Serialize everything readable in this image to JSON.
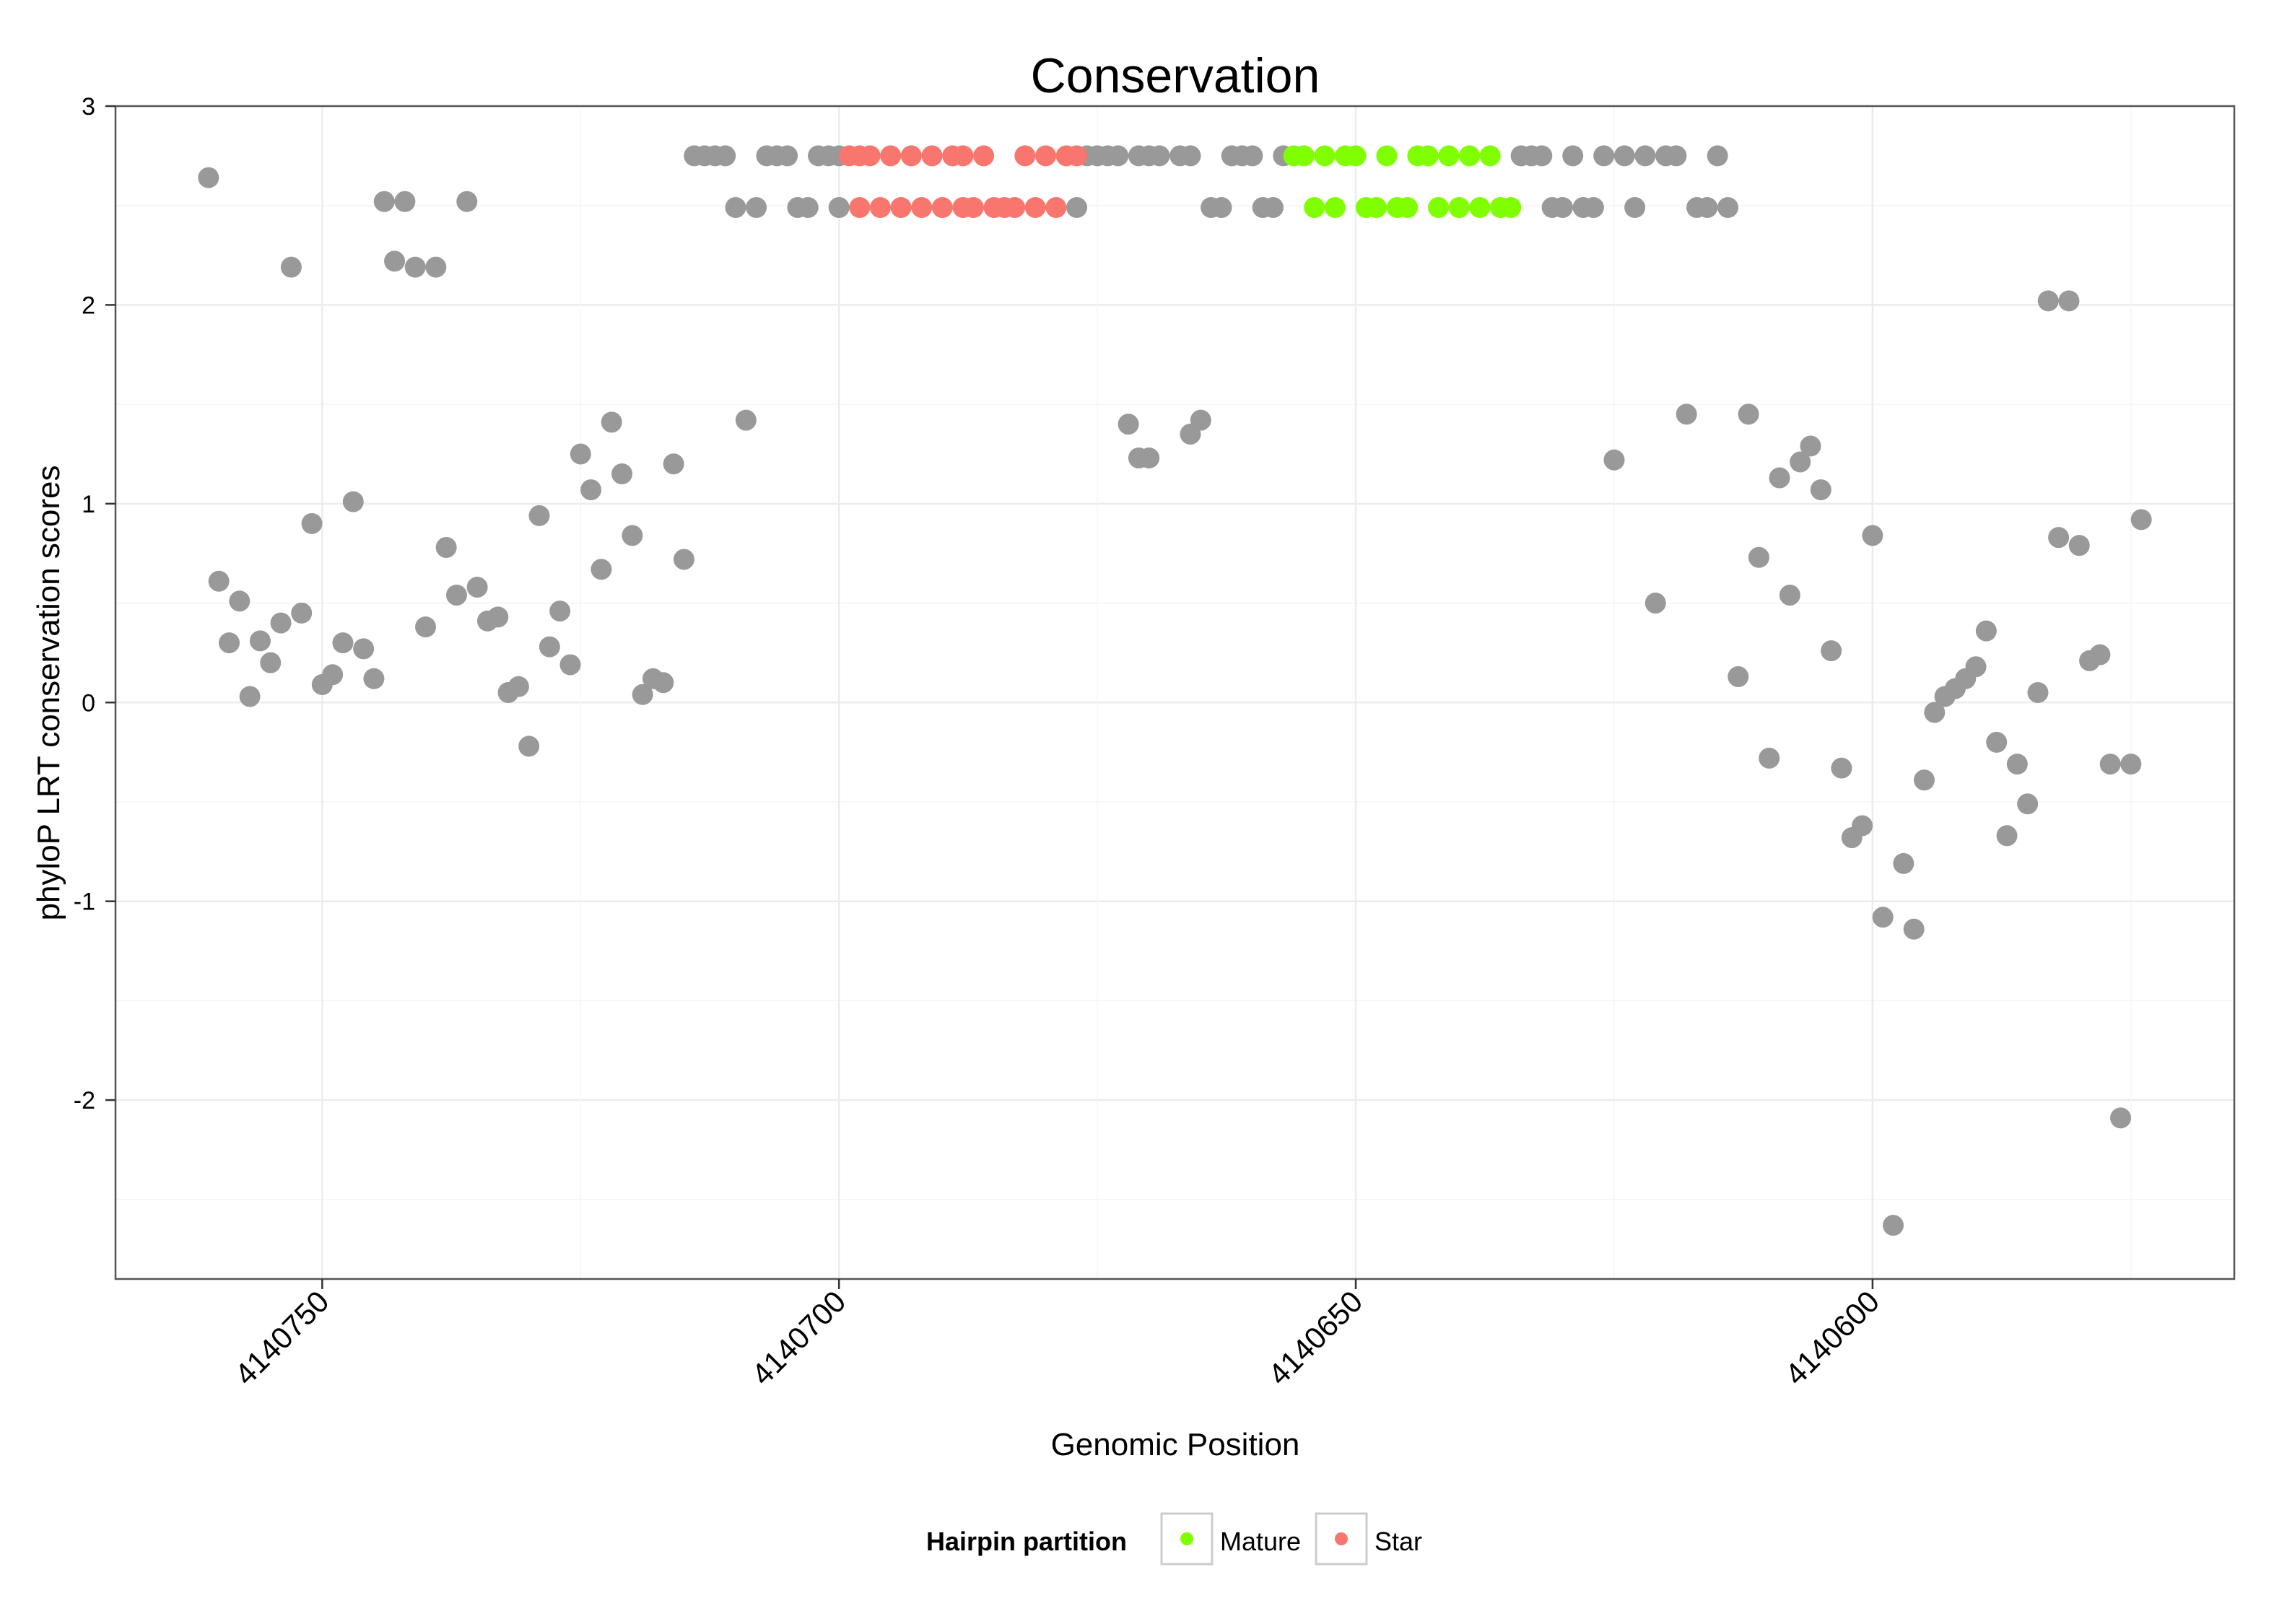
{
  "chart_data": {
    "type": "scatter",
    "title": "Conservation",
    "xlabel": "Genomic Position",
    "ylabel": "phyloP LRT conservation scores",
    "xlim": [
      4140770,
      4140565
    ],
    "ylim": [
      -2.9,
      3.0
    ],
    "x_reversed": true,
    "yticks": [
      -2,
      -1,
      0,
      1,
      2,
      3
    ],
    "ytick_labels": [
      "-2",
      "-1",
      "0",
      "1",
      "2",
      "3"
    ],
    "xticks": [
      4140750,
      4140700,
      4140650,
      4140600
    ],
    "xtick_labels": [
      "4140750",
      "4140700",
      "4140650",
      "4140600"
    ],
    "grid": true,
    "legend": {
      "title": "Hairpin partition",
      "position": "bottom",
      "entries": [
        {
          "name": "Mature",
          "color": "#7FFF00"
        },
        {
          "name": "Star",
          "color": "#F8766D"
        }
      ]
    },
    "colors": {
      "Other": "#999999",
      "Mature": "#7FFF00",
      "Star": "#F8766D"
    },
    "series": [
      {
        "name": "Other",
        "points": [
          [
            4140761,
            2.64
          ],
          [
            4140760,
            0.61
          ],
          [
            4140759,
            0.3
          ],
          [
            4140758,
            0.51
          ],
          [
            4140757,
            0.03
          ],
          [
            4140756,
            0.31
          ],
          [
            4140755,
            0.2
          ],
          [
            4140754,
            0.4
          ],
          [
            4140753,
            2.19
          ],
          [
            4140752,
            0.45
          ],
          [
            4140751,
            0.9
          ],
          [
            4140750,
            0.09
          ],
          [
            4140749,
            0.14
          ],
          [
            4140748,
            0.3
          ],
          [
            4140747,
            1.01
          ],
          [
            4140746,
            0.27
          ],
          [
            4140745,
            0.12
          ],
          [
            4140744,
            2.52
          ],
          [
            4140743,
            2.22
          ],
          [
            4140742,
            2.52
          ],
          [
            4140741,
            2.19
          ],
          [
            4140740,
            0.38
          ],
          [
            4140739,
            2.19
          ],
          [
            4140738,
            0.78
          ],
          [
            4140737,
            0.54
          ],
          [
            4140736,
            2.52
          ],
          [
            4140735,
            0.58
          ],
          [
            4140734,
            0.41
          ],
          [
            4140733,
            0.43
          ],
          [
            4140732,
            0.05
          ],
          [
            4140731,
            0.08
          ],
          [
            4140730,
            -0.22
          ],
          [
            4140729,
            0.94
          ],
          [
            4140728,
            0.28
          ],
          [
            4140727,
            0.46
          ],
          [
            4140726,
            0.19
          ],
          [
            4140725,
            1.25
          ],
          [
            4140724,
            1.07
          ],
          [
            4140723,
            0.67
          ],
          [
            4140722,
            1.41
          ],
          [
            4140721,
            1.15
          ],
          [
            4140720,
            0.84
          ],
          [
            4140719,
            0.04
          ],
          [
            4140718,
            0.12
          ],
          [
            4140717,
            0.1
          ],
          [
            4140716,
            1.2
          ],
          [
            4140715,
            0.72
          ],
          [
            4140714,
            2.75
          ],
          [
            4140713,
            2.75
          ],
          [
            4140712,
            2.75
          ],
          [
            4140711,
            2.75
          ],
          [
            4140710,
            2.49
          ],
          [
            4140709,
            1.42
          ],
          [
            4140708,
            2.49
          ],
          [
            4140707,
            2.75
          ],
          [
            4140706,
            2.75
          ],
          [
            4140705,
            2.75
          ],
          [
            4140704,
            2.49
          ],
          [
            4140703,
            2.49
          ],
          [
            4140702,
            2.75
          ],
          [
            4140701,
            2.75
          ],
          [
            4140700,
            2.75
          ],
          [
            4140700,
            2.49
          ],
          [
            4140677,
            2.49
          ],
          [
            4140676,
            2.75
          ],
          [
            4140675,
            2.75
          ],
          [
            4140674,
            2.75
          ],
          [
            4140673,
            2.75
          ],
          [
            4140672,
            1.4
          ],
          [
            4140671,
            2.75
          ],
          [
            4140671,
            1.23
          ],
          [
            4140670,
            2.75
          ],
          [
            4140670,
            1.23
          ],
          [
            4140669,
            2.75
          ],
          [
            4140667,
            2.75
          ],
          [
            4140666,
            2.75
          ],
          [
            4140666,
            1.35
          ],
          [
            4140665,
            1.42
          ],
          [
            4140664,
            2.49
          ],
          [
            4140663,
            2.49
          ],
          [
            4140662,
            2.75
          ],
          [
            4140661,
            2.75
          ],
          [
            4140660,
            2.75
          ],
          [
            4140659,
            2.49
          ],
          [
            4140658,
            2.49
          ],
          [
            4140657,
            2.75
          ],
          [
            4140634,
            2.75
          ],
          [
            4140633,
            2.75
          ],
          [
            4140632,
            2.75
          ],
          [
            4140631,
            2.49
          ],
          [
            4140630,
            2.49
          ],
          [
            4140629,
            2.75
          ],
          [
            4140628,
            2.49
          ],
          [
            4140627,
            2.49
          ],
          [
            4140626,
            2.75
          ],
          [
            4140625,
            1.22
          ],
          [
            4140624,
            2.75
          ],
          [
            4140623,
            2.49
          ],
          [
            4140622,
            2.75
          ],
          [
            4140621,
            0.5
          ],
          [
            4140620,
            2.75
          ],
          [
            4140619,
            2.75
          ],
          [
            4140618,
            1.45
          ],
          [
            4140617,
            2.49
          ],
          [
            4140616,
            2.49
          ],
          [
            4140615,
            2.75
          ],
          [
            4140614,
            2.49
          ],
          [
            4140613,
            0.13
          ],
          [
            4140612,
            1.45
          ],
          [
            4140611,
            0.73
          ],
          [
            4140610,
            -0.28
          ],
          [
            4140609,
            1.13
          ],
          [
            4140608,
            0.54
          ],
          [
            4140607,
            1.21
          ],
          [
            4140606,
            1.29
          ],
          [
            4140605,
            1.07
          ],
          [
            4140604,
            0.26
          ],
          [
            4140603,
            -0.33
          ],
          [
            4140602,
            -0.68
          ],
          [
            4140601,
            -0.62
          ],
          [
            4140600,
            0.84
          ],
          [
            4140599,
            -1.08
          ],
          [
            4140598,
            -2.63
          ],
          [
            4140597,
            -0.81
          ],
          [
            4140596,
            -1.14
          ],
          [
            4140595,
            -0.39
          ],
          [
            4140594,
            -0.05
          ],
          [
            4140593,
            0.03
          ],
          [
            4140592,
            0.07
          ],
          [
            4140591,
            0.12
          ],
          [
            4140590,
            0.18
          ],
          [
            4140589,
            0.36
          ],
          [
            4140588,
            -0.2
          ],
          [
            4140587,
            -0.67
          ],
          [
            4140586,
            -0.31
          ],
          [
            4140585,
            -0.51
          ],
          [
            4140584,
            0.05
          ],
          [
            4140583,
            2.02
          ],
          [
            4140582,
            0.83
          ],
          [
            4140581,
            2.02
          ],
          [
            4140580,
            0.79
          ],
          [
            4140579,
            0.21
          ],
          [
            4140578,
            0.24
          ],
          [
            4140577,
            -0.31
          ],
          [
            4140576,
            -2.09
          ],
          [
            4140575,
            -0.31
          ],
          [
            4140574,
            0.92
          ]
        ]
      },
      {
        "name": "Star",
        "points": [
          [
            4140699,
            2.75
          ],
          [
            4140698,
            2.75
          ],
          [
            4140698,
            2.49
          ],
          [
            4140697,
            2.75
          ],
          [
            4140696,
            2.49
          ],
          [
            4140695,
            2.75
          ],
          [
            4140694,
            2.49
          ],
          [
            4140693,
            2.75
          ],
          [
            4140692,
            2.49
          ],
          [
            4140691,
            2.75
          ],
          [
            4140690,
            2.49
          ],
          [
            4140689,
            2.75
          ],
          [
            4140688,
            2.75
          ],
          [
            4140688,
            2.49
          ],
          [
            4140687,
            2.49
          ],
          [
            4140686,
            2.75
          ],
          [
            4140685,
            2.49
          ],
          [
            4140684,
            2.49
          ],
          [
            4140683,
            2.49
          ],
          [
            4140682,
            2.75
          ],
          [
            4140681,
            2.49
          ],
          [
            4140680,
            2.75
          ],
          [
            4140679,
            2.49
          ],
          [
            4140678,
            2.75
          ],
          [
            4140677,
            2.75
          ]
        ]
      },
      {
        "name": "Mature",
        "points": [
          [
            4140656,
            2.75
          ],
          [
            4140655,
            2.75
          ],
          [
            4140654,
            2.49
          ],
          [
            4140653,
            2.75
          ],
          [
            4140652,
            2.49
          ],
          [
            4140651,
            2.75
          ],
          [
            4140650,
            2.75
          ],
          [
            4140649,
            2.49
          ],
          [
            4140648,
            2.49
          ],
          [
            4140647,
            2.75
          ],
          [
            4140646,
            2.49
          ],
          [
            4140645,
            2.49
          ],
          [
            4140644,
            2.75
          ],
          [
            4140643,
            2.75
          ],
          [
            4140642,
            2.49
          ],
          [
            4140641,
            2.75
          ],
          [
            4140640,
            2.49
          ],
          [
            4140639,
            2.75
          ],
          [
            4140638,
            2.49
          ],
          [
            4140637,
            2.75
          ],
          [
            4140636,
            2.49
          ],
          [
            4140635,
            2.49
          ]
        ]
      }
    ]
  }
}
